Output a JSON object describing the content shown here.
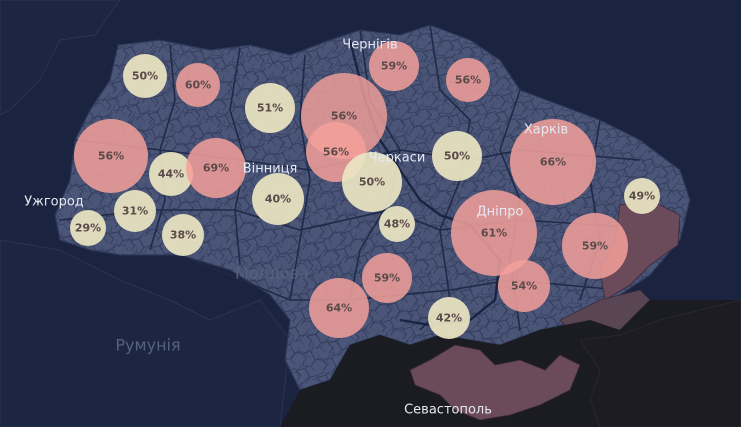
{
  "map": {
    "colors": {
      "background": "#1a2440",
      "country": "#4a5577",
      "border": "#2b3554",
      "sea": "#1b1b22",
      "occupied": "#6b4a5a",
      "bubble_high": "#f4a09a",
      "bubble_low": "#ebe6c2"
    },
    "cities": [
      {
        "id": "chernihiv",
        "name": "Чернігів"
      },
      {
        "id": "kharkiv",
        "name": "Харків"
      },
      {
        "id": "vinnytsia",
        "name": "Вінниця"
      },
      {
        "id": "cherkasy",
        "name": "Черкаси"
      },
      {
        "id": "uzhhorod",
        "name": "Ужгород"
      },
      {
        "id": "dnipro",
        "name": "Дніпро"
      },
      {
        "id": "sevastopol",
        "name": "Севастополь"
      }
    ],
    "countries": [
      {
        "id": "moldova",
        "name": "Молдова"
      },
      {
        "id": "romania",
        "name": "Румунія"
      }
    ],
    "bubbles": [
      {
        "label": "50%",
        "tone": "low"
      },
      {
        "label": "60%",
        "tone": "high"
      },
      {
        "label": "51%",
        "tone": "low"
      },
      {
        "label": "56%",
        "tone": "high"
      },
      {
        "label": "59%",
        "tone": "high"
      },
      {
        "label": "56%",
        "tone": "high"
      },
      {
        "label": "56%",
        "tone": "high"
      },
      {
        "label": "44%",
        "tone": "low"
      },
      {
        "label": "69%",
        "tone": "high"
      },
      {
        "label": "56%",
        "tone": "high"
      },
      {
        "label": "40%",
        "tone": "low"
      },
      {
        "label": "50%",
        "tone": "low"
      },
      {
        "label": "50%",
        "tone": "low"
      },
      {
        "label": "66%",
        "tone": "high"
      },
      {
        "label": "49%",
        "tone": "low"
      },
      {
        "label": "29%",
        "tone": "low"
      },
      {
        "label": "31%",
        "tone": "low"
      },
      {
        "label": "38%",
        "tone": "low"
      },
      {
        "label": "48%",
        "tone": "low"
      },
      {
        "label": "61%",
        "tone": "high"
      },
      {
        "label": "59%",
        "tone": "high"
      },
      {
        "label": "59%",
        "tone": "high"
      },
      {
        "label": "54%",
        "tone": "high"
      },
      {
        "label": "64%",
        "tone": "high"
      },
      {
        "label": "42%",
        "tone": "low"
      }
    ]
  }
}
